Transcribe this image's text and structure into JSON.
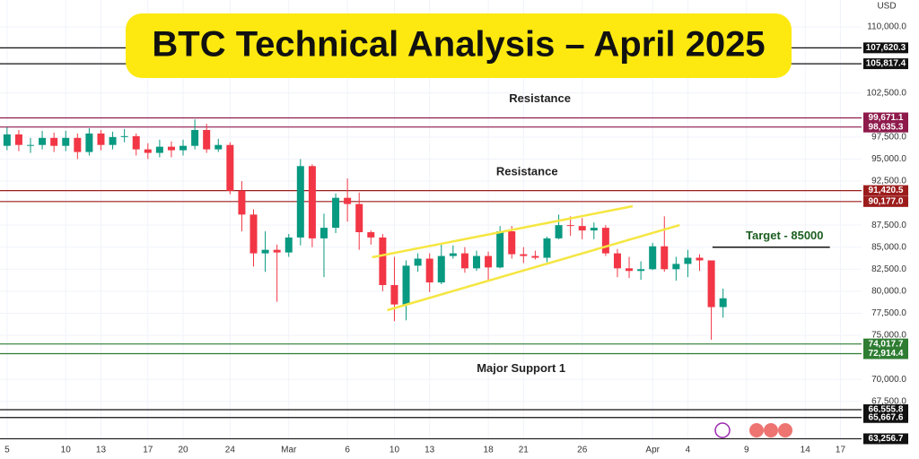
{
  "chart_data": {
    "type": "candlestick",
    "title": "BTC Technical Analysis – April 2025",
    "currency": "USD",
    "categories": [
      "Feb 5",
      "Feb 6",
      "Feb 7",
      "Feb 8",
      "Feb 9",
      "Feb 10",
      "Feb 11",
      "Feb 12",
      "Feb 13",
      "Feb 14",
      "Feb 15",
      "Feb 16",
      "Feb 17",
      "Feb 18",
      "Feb 19",
      "Feb 20",
      "Feb 21",
      "Feb 22",
      "Feb 23",
      "Feb 24",
      "Feb 25",
      "Feb 26",
      "Feb 27",
      "Feb 28",
      "Mar 1",
      "Mar 2",
      "Mar 3",
      "Mar 4",
      "Mar 5",
      "Mar 6",
      "Mar 7",
      "Mar 8",
      "Mar 9",
      "Mar 10",
      "Mar 11",
      "Mar 12",
      "Mar 13",
      "Mar 14",
      "Mar 15",
      "Mar 16",
      "Mar 17",
      "Mar 18",
      "Mar 19",
      "Mar 20",
      "Mar 21",
      "Mar 22",
      "Mar 23",
      "Mar 24",
      "Mar 25",
      "Mar 26",
      "Mar 27",
      "Mar 28",
      "Mar 29",
      "Mar 30",
      "Mar 31",
      "Apr 1",
      "Apr 2",
      "Apr 3",
      "Apr 4",
      "Apr 5",
      "Apr 6",
      "Apr 7"
    ],
    "open": [
      96500,
      97800,
      96600,
      96600,
      97400,
      96500,
      97400,
      95800,
      97900,
      96600,
      97500,
      97600,
      96100,
      95700,
      96400,
      96000,
      96500,
      98300,
      96100,
      96600,
      91400,
      88700,
      84300,
      84700,
      84400,
      86100,
      94200,
      86000,
      87200,
      90600,
      89900,
      86700,
      86100,
      80700,
      78500,
      82900,
      83700,
      81000,
      84000,
      84300,
      82600,
      84000,
      82700,
      86800,
      84200,
      84000,
      83800,
      86000,
      87500,
      87400,
      86900,
      87200,
      84300,
      82600,
      82300,
      82500,
      85100,
      82500,
      83100,
      83800,
      83500,
      78200
    ],
    "high": [
      98600,
      98300,
      97400,
      98200,
      98000,
      98200,
      97900,
      98500,
      98300,
      98100,
      98400,
      97900,
      96800,
      97200,
      97000,
      97200,
      99500,
      99000,
      97300,
      96900,
      92500,
      89300,
      86800,
      85300,
      86500,
      95000,
      94400,
      88800,
      91100,
      92800,
      91200,
      86900,
      86500,
      83900,
      83500,
      84300,
      84300,
      85300,
      85200,
      85000,
      84600,
      84500,
      87400,
      87400,
      85000,
      84600,
      86200,
      88700,
      88500,
      88300,
      87800,
      87500,
      84800,
      83900,
      83400,
      85500,
      88500,
      83900,
      84700,
      84200,
      83500,
      80300
    ],
    "low": [
      96000,
      95900,
      95700,
      96100,
      95800,
      95900,
      95000,
      95400,
      96000,
      96100,
      96900,
      95400,
      95000,
      95200,
      95200,
      95400,
      96100,
      95700,
      95800,
      91000,
      86800,
      82800,
      82200,
      78800,
      83900,
      85200,
      85000,
      81600,
      86600,
      87900,
      84700,
      85300,
      80000,
      76600,
      76700,
      82200,
      79900,
      80800,
      83700,
      82100,
      82300,
      81200,
      82600,
      83700,
      83200,
      83600,
      83300,
      85900,
      86300,
      85900,
      85900,
      84000,
      81600,
      81500,
      81300,
      82400,
      82200,
      81200,
      81600,
      82300,
      74500,
      77000
    ],
    "close": [
      97800,
      96600,
      96600,
      97400,
      96500,
      97400,
      95800,
      97900,
      96600,
      97500,
      97600,
      96100,
      95700,
      96400,
      96000,
      96500,
      98300,
      96100,
      96600,
      91400,
      88700,
      84300,
      84700,
      84400,
      86100,
      94200,
      86000,
      87200,
      90600,
      89900,
      86700,
      86100,
      80700,
      78500,
      82900,
      83700,
      81000,
      84000,
      84300,
      82600,
      84000,
      82700,
      86800,
      84200,
      84000,
      83800,
      86000,
      87500,
      87400,
      86900,
      87200,
      84300,
      82600,
      82300,
      82500,
      85100,
      82500,
      83100,
      83800,
      83500,
      78200,
      79200
    ],
    "up_color": "#089981",
    "down_color": "#f23645",
    "xlim": [
      -0.6,
      72.8
    ],
    "xticks": [
      {
        "value": 0,
        "label": "5"
      },
      {
        "value": 5,
        "label": "10"
      },
      {
        "value": 8,
        "label": "13"
      },
      {
        "value": 12,
        "label": "17"
      },
      {
        "value": 15,
        "label": "20"
      },
      {
        "value": 19,
        "label": "24"
      },
      {
        "value": 24,
        "label": "Mar"
      },
      {
        "value": 29,
        "label": "6"
      },
      {
        "value": 33,
        "label": "10"
      },
      {
        "value": 36,
        "label": "13"
      },
      {
        "value": 41,
        "label": "18"
      },
      {
        "value": 44,
        "label": "21"
      },
      {
        "value": 49,
        "label": "26"
      },
      {
        "value": 55,
        "label": "Apr"
      },
      {
        "value": 58,
        "label": "4"
      },
      {
        "value": 63,
        "label": "9"
      },
      {
        "value": 68,
        "label": "14"
      },
      {
        "value": 71,
        "label": "17"
      }
    ],
    "ylim": [
      63200,
      113050
    ],
    "yticks": [
      {
        "value": 110000,
        "label": "110,000.0"
      },
      {
        "value": 102500,
        "label": "102,500.0"
      },
      {
        "value": 97500,
        "label": "97,500.0"
      },
      {
        "value": 95000,
        "label": "95,000.0"
      },
      {
        "value": 92500,
        "label": "92,500.0"
      },
      {
        "value": 87500,
        "label": "87,500.0"
      },
      {
        "value": 85000,
        "label": "85,000.0"
      },
      {
        "value": 82500,
        "label": "82,500.0"
      },
      {
        "value": 80000,
        "label": "80,000.0"
      },
      {
        "value": 77500,
        "label": "77,500.0"
      },
      {
        "value": 75000,
        "label": "75,000.0"
      },
      {
        "value": 70000,
        "label": "70,000.0"
      },
      {
        "value": 67500,
        "label": "67,500.0"
      }
    ],
    "grid": true,
    "levels": [
      {
        "value": 107620.3,
        "label": "107,620.3",
        "color": "#111111"
      },
      {
        "value": 105817.4,
        "label": "105,817.4",
        "color": "#111111"
      },
      {
        "value": 99671.1,
        "label": "99,671.1",
        "color": "#8e1a4b"
      },
      {
        "value": 98635.3,
        "label": "98,635.3",
        "color": "#8e1a4b"
      },
      {
        "value": 91420.5,
        "label": "91,420.5",
        "color": "#9c1c1c"
      },
      {
        "value": 90177.0,
        "label": "90,177.0",
        "color": "#9c1c1c"
      },
      {
        "value": 74017.7,
        "label": "74,017.7",
        "color": "#2e7d32"
      },
      {
        "value": 72914.4,
        "label": "72,914.4",
        "color": "#2e7d32"
      },
      {
        "value": 66555.8,
        "label": "66,555.8",
        "color": "#111111"
      },
      {
        "value": 65667.6,
        "label": "65,667.6",
        "color": "#111111"
      },
      {
        "value": 63256.7,
        "label": "63,256.7",
        "color": "#111111"
      }
    ],
    "trendlines": [
      {
        "x": [
          31.1,
          53.3
        ],
        "y": [
          83850,
          89650
        ],
        "color": "#f5e642"
      },
      {
        "x": [
          32.4,
          57.3
        ],
        "y": [
          77850,
          87510
        ],
        "color": "#f5e642"
      }
    ],
    "target": {
      "text": "Target - 85000",
      "value": 85000,
      "x": [
        60.1,
        70.1
      ],
      "color": "#1b5e20"
    },
    "annotations": [
      {
        "text": "Resistance",
        "x": 45.4,
        "y": 101800
      },
      {
        "text": "Resistance",
        "x": 44.3,
        "y": 93500
      },
      {
        "text": "Major Support 1",
        "x": 43.8,
        "y": 71200
      }
    ]
  }
}
